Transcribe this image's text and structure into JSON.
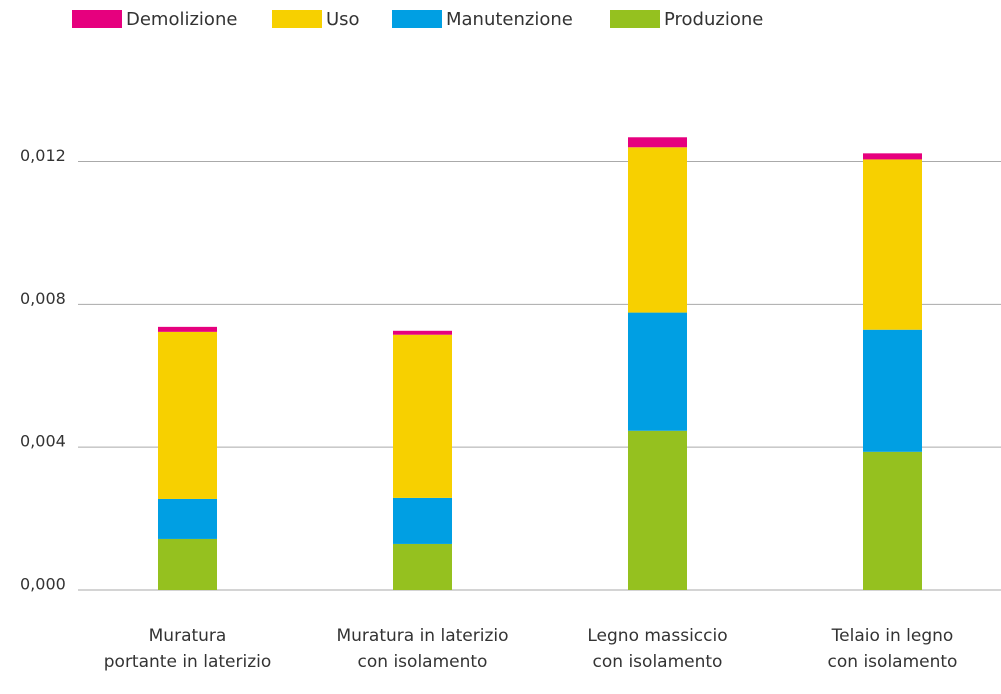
{
  "chart_data": {
    "type": "stacked_bar",
    "categories": [
      [
        "Muratura",
        "portante in laterizio"
      ],
      [
        "Muratura in laterizio",
        "con isolamento"
      ],
      [
        "Legno massiccio",
        "con isolamento"
      ],
      [
        "Telaio in legno",
        "con isolamento"
      ]
    ],
    "series": [
      {
        "name": "Demolizione",
        "color": "#e6007e",
        "values": [
          0.00014,
          0.00011,
          0.00028,
          0.00017
        ]
      },
      {
        "name": "Uso",
        "color": "#f7d000",
        "values": [
          0.00468,
          0.00457,
          0.00463,
          0.00477
        ]
      },
      {
        "name": "Manutenzione",
        "color": "#009fe3",
        "values": [
          0.00112,
          0.00129,
          0.00331,
          0.00342
        ]
      },
      {
        "name": "Produzione",
        "color": "#95c11f",
        "values": [
          0.00143,
          0.00129,
          0.00446,
          0.00387
        ]
      }
    ],
    "ylim": [
      0,
      0.0135
    ],
    "yticks": [
      {
        "value": 0,
        "label": "0,000"
      },
      {
        "value": 0.004,
        "label": "0,004"
      },
      {
        "value": 0.008,
        "label": "0,008"
      },
      {
        "value": 0.012,
        "label": "0,012"
      }
    ],
    "grid": true,
    "legend": "top"
  }
}
